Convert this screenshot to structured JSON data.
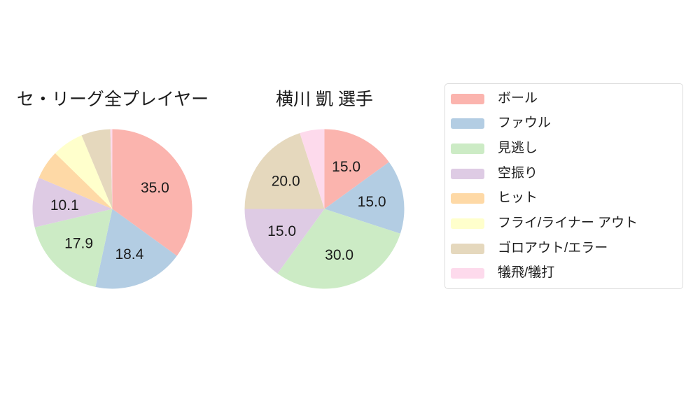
{
  "page": {
    "background": "#FFFFFF",
    "text_color": "#1B1B1B"
  },
  "legend": {
    "border_color": "#DDDDDD",
    "items": [
      {
        "label": "ボール",
        "color": "#FBB4AE"
      },
      {
        "label": "ファウル",
        "color": "#B3CDE3"
      },
      {
        "label": "見逃し",
        "color": "#CCEBC5"
      },
      {
        "label": "空振り",
        "color": "#DECBE4"
      },
      {
        "label": "ヒット",
        "color": "#FED9A6"
      },
      {
        "label": "フライ/ライナー アウト",
        "color": "#FFFFCC"
      },
      {
        "label": "ゴロアウト/エラー",
        "color": "#E5D8BD"
      },
      {
        "label": "犠飛/犠打",
        "color": "#FDDAEC"
      }
    ]
  },
  "chart_data": [
    {
      "type": "pie",
      "title": "セ・リーグ全プレイヤー",
      "categories": [
        "ボール",
        "ファウル",
        "見逃し",
        "空振り",
        "ヒット",
        "フライ/ライナー アウト",
        "ゴロアウト/エラー",
        "犠飛/犠打"
      ],
      "values": [
        35.0,
        18.4,
        17.9,
        10.1,
        5.9,
        6.4,
        5.9,
        0.4
      ],
      "visible_value_labels": [
        "35.0",
        "18.4",
        "17.9",
        "10.1"
      ],
      "start_angle": "12-oclock",
      "direction": "clockwise",
      "label_position": "inside"
    },
    {
      "type": "pie",
      "title": "横川 凱 選手",
      "categories": [
        "ボール",
        "ファウル",
        "見逃し",
        "空振り",
        "ヒット",
        "フライ/ライナー アウト",
        "ゴロアウト/エラー",
        "犠飛/犠打"
      ],
      "values": [
        15.0,
        15.0,
        30.0,
        15.0,
        0,
        0,
        20.0,
        5.0
      ],
      "visible_value_labels": [
        "15.0",
        "15.0",
        "30.0",
        "15.0",
        "20.0"
      ],
      "start_angle": "12-oclock",
      "direction": "clockwise",
      "label_position": "inside"
    }
  ]
}
